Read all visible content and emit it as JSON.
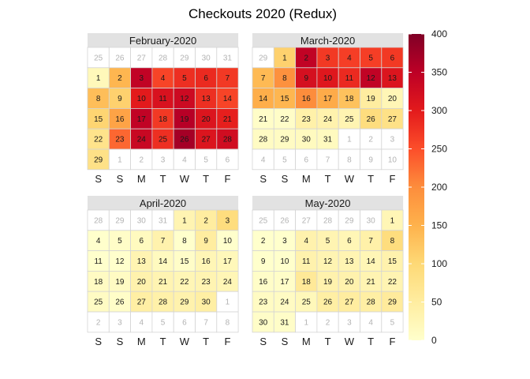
{
  "chart_data": {
    "type": "heatmap",
    "title": "Checkouts 2020 (Redux)",
    "weekday_labels": [
      "S",
      "S",
      "M",
      "T",
      "W",
      "T",
      "F"
    ],
    "colorbar": {
      "min": 0,
      "max": 400,
      "ticks": [
        "0",
        "50",
        "100",
        "150",
        "200",
        "250",
        "300",
        "350",
        "400"
      ],
      "colors": [
        "#ffffcc",
        "#ffeda0",
        "#fed976",
        "#feb24c",
        "#fd8d3c",
        "#fc4e2a",
        "#e31a1c",
        "#bd0026",
        "#800026"
      ]
    },
    "months": [
      {
        "label": "February-2020",
        "start_day": "2020-02-01",
        "lead": [
          "25",
          "26",
          "27",
          "28",
          "29",
          "30",
          "31"
        ],
        "values": [
          20,
          145,
          345,
          260,
          280,
          285,
          270,
          135,
          110,
          300,
          315,
          330,
          280,
          260,
          105,
          170,
          345,
          270,
          355,
          310,
          295,
          75,
          230,
          335,
          280,
          370,
          310,
          325,
          80
        ],
        "trail": [
          "1",
          "2",
          "3",
          "4",
          "5",
          "6"
        ]
      },
      {
        "label": "March-2020",
        "start_day": "2020-03-01",
        "lead": [
          "29"
        ],
        "values": [
          110,
          345,
          270,
          265,
          265,
          270,
          140,
          195,
          320,
          305,
          285,
          345,
          310,
          155,
          145,
          200,
          160,
          130,
          50,
          25,
          5,
          5,
          40,
          35,
          30,
          90,
          80,
          10,
          10,
          15,
          15
        ],
        "trail": [
          "1",
          "2",
          "3",
          "4",
          "5",
          "6",
          "7",
          "8",
          "9",
          "10"
        ]
      },
      {
        "label": "April-2020",
        "start_day": "2020-04-01",
        "lead": [
          "28",
          "29",
          "30",
          "31"
        ],
        "values": [
          30,
          50,
          90,
          0,
          5,
          15,
          35,
          0,
          50,
          0,
          0,
          0,
          30,
          15,
          5,
          25,
          20,
          10,
          10,
          35,
          30,
          25,
          30,
          25,
          10,
          5,
          45,
          40,
          35,
          45
        ],
        "trail": [
          "1",
          "2",
          "3",
          "4",
          "5",
          "6",
          "7",
          "8"
        ]
      },
      {
        "label": "May-2020",
        "start_day": "2020-05-01",
        "lead": [
          "25",
          "26",
          "27",
          "28",
          "29",
          "30"
        ],
        "values": [
          25,
          0,
          0,
          35,
          30,
          25,
          40,
          90,
          0,
          0,
          35,
          30,
          30,
          25,
          35,
          5,
          5,
          60,
          35,
          35,
          30,
          30,
          10,
          10,
          20,
          45,
          50,
          45,
          55,
          5,
          5
        ],
        "trail": [
          "1",
          "2",
          "3",
          "4",
          "5"
        ]
      }
    ]
  }
}
